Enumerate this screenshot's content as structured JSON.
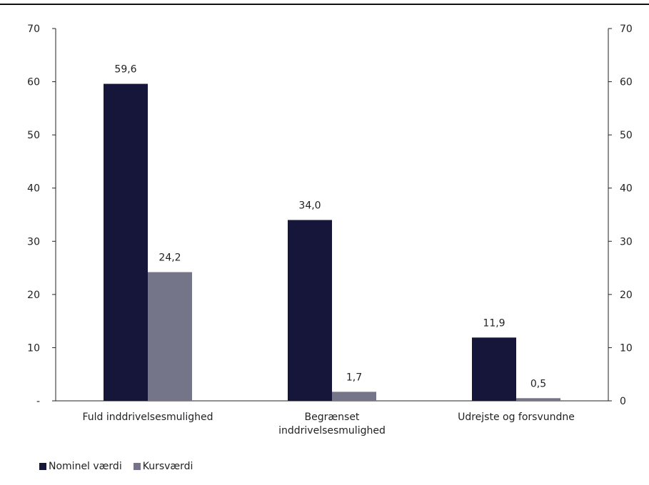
{
  "chart_data": {
    "type": "bar",
    "categories": [
      "Fuld inddrivelsesmulighed",
      "Begrænset inddrivelsesmulighed",
      "Udrejste og forsvundne"
    ],
    "category_label_lines": [
      [
        "Fuld inddrivelsesmulighed"
      ],
      [
        "Begrænset",
        "inddrivelsesmulighed"
      ],
      [
        "Udrejste og forsvundne"
      ]
    ],
    "series": [
      {
        "name": "Nominel værdi",
        "values": [
          59.6,
          34.0,
          11.9
        ],
        "labels": [
          "59,6",
          "34,0",
          "11,9"
        ],
        "color": "#16163a"
      },
      {
        "name": "Kursværdi",
        "values": [
          24.2,
          1.7,
          0.5
        ],
        "labels": [
          "24,2",
          "1,7",
          "0,5"
        ],
        "color": "#75758a"
      }
    ],
    "ylim": [
      0,
      70
    ],
    "y_ticks_left": [
      "-",
      "10",
      "20",
      "30",
      "40",
      "50",
      "60",
      "70"
    ],
    "y_ticks_right": [
      "0",
      "10",
      "20",
      "30",
      "40",
      "50",
      "60",
      "70"
    ],
    "title": "",
    "xlabel": "",
    "ylabel": "",
    "grid": false,
    "legend_position": "bottom-left"
  },
  "legend": {
    "items": [
      {
        "label": "Nominel værdi",
        "color": "#16163a"
      },
      {
        "label": "Kursværdi",
        "color": "#75758a"
      }
    ]
  }
}
